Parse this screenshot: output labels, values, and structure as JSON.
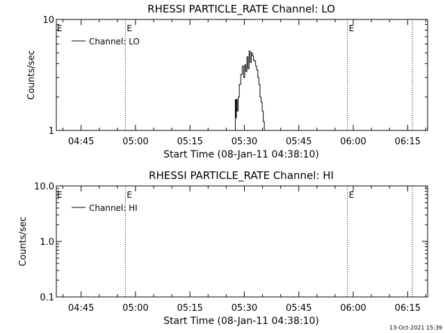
{
  "footer_timestamp": "13-Oct-2021 15:39",
  "chart_data": [
    {
      "type": "line",
      "title": "RHESSI PARTICLE_RATE Channel: LO",
      "xlabel": "Start Time (08-Jan-11 04:38:10)",
      "ylabel": "Counts/sec",
      "y_scale": "log",
      "ylim": [
        1,
        10
      ],
      "y_ticks": [
        {
          "value": 1,
          "label": "1"
        },
        {
          "value": 10,
          "label": "10"
        }
      ],
      "x_ticks": [
        "04:45",
        "05:00",
        "05:15",
        "05:30",
        "05:45",
        "06:00",
        "06:15"
      ],
      "x_tick_minutes": [
        285,
        300,
        315,
        330,
        345,
        360,
        375
      ],
      "xlim_minutes": [
        278.17,
        380.5
      ],
      "legend": {
        "label": "Channel: LO",
        "placement": "top-left"
      },
      "markers": [
        {
          "time_minutes": 297.2,
          "label": "E"
        },
        {
          "time_minutes": 358.4,
          "label": "E"
        },
        {
          "time_minutes": 376.3,
          "label": ""
        }
      ],
      "series": [
        {
          "name": "Channel: LO",
          "x_minutes": [
            327.4,
            327.5,
            327.6,
            327.8,
            328.0,
            328.3,
            328.6,
            329.0,
            329.4,
            329.8,
            330.1,
            330.4,
            330.7,
            331.0,
            331.3,
            331.6,
            331.9,
            332.2,
            332.5,
            332.8,
            333.1,
            333.4,
            333.7,
            334.0,
            334.3,
            334.6,
            334.9,
            335.2,
            335.5,
            335.8,
            336.1,
            336.4,
            336.7,
            337.0
          ],
          "y": [
            1.0,
            1.9,
            1.3,
            1.9,
            1.5,
            2.0,
            2.6,
            3.2,
            3.8,
            3.0,
            3.9,
            3.4,
            4.6,
            3.6,
            5.2,
            4.1,
            5.0,
            4.7,
            4.3,
            4.2,
            3.8,
            3.5,
            3.0,
            2.6,
            2.0,
            1.8,
            1.5,
            1.2,
            1.0,
            1.0,
            1.0,
            1.0,
            1.0,
            1.0
          ]
        }
      ]
    },
    {
      "type": "line",
      "title": "RHESSI PARTICLE_RATE Channel: HI",
      "xlabel": "Start Time (08-Jan-11 04:38:10)",
      "ylabel": "Counts/sec",
      "y_scale": "log",
      "ylim": [
        0.1,
        10
      ],
      "y_ticks": [
        {
          "value": 0.1,
          "label": "0.1"
        },
        {
          "value": 1,
          "label": "1.0"
        },
        {
          "value": 10,
          "label": "10.0"
        }
      ],
      "x_ticks": [
        "04:45",
        "05:00",
        "05:15",
        "05:30",
        "05:45",
        "06:00",
        "06:15"
      ],
      "x_tick_minutes": [
        285,
        300,
        315,
        330,
        345,
        360,
        375
      ],
      "xlim_minutes": [
        278.17,
        380.5
      ],
      "legend": {
        "label": "Channel: HI",
        "placement": "top-left"
      },
      "markers": [
        {
          "time_minutes": 297.2,
          "label": "E"
        },
        {
          "time_minutes": 358.4,
          "label": "E"
        },
        {
          "time_minutes": 376.3,
          "label": ""
        }
      ],
      "series": [
        {
          "name": "Channel: HI",
          "x_minutes": [],
          "y": []
        }
      ]
    }
  ]
}
